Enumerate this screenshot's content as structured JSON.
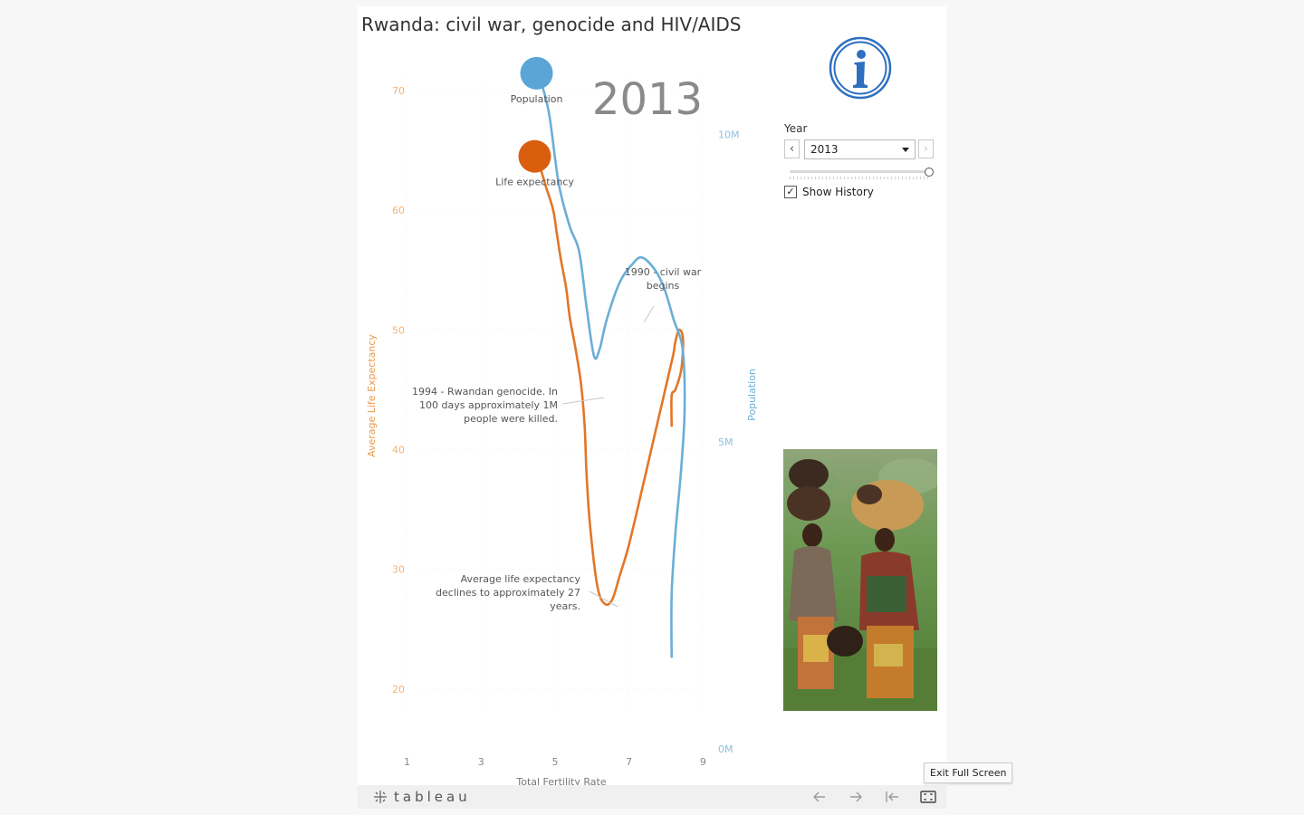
{
  "dashboard": {
    "title": "Rwanda: civil war, genocide and HIV/AIDS"
  },
  "controls": {
    "year_label": "Year",
    "year_value": "2013",
    "show_history_label": "Show History",
    "show_history_checked": true
  },
  "toolbar": {
    "brand": "tableau",
    "exit_fullscreen_tooltip": "Exit Full Screen"
  },
  "chart_data": {
    "type": "line",
    "big_year_label": "2013",
    "xlabel": "Total Fertility Rate",
    "ylabel_left": "Average Life Expectancy",
    "ylabel_right": "Population",
    "xlim": [
      0.4,
      9.7
    ],
    "ylim_left": [
      15,
      74
    ],
    "ylim_right": [
      0,
      11500000
    ],
    "x_ticks": [
      1,
      3,
      5,
      7,
      9
    ],
    "y_ticks_left": [
      20,
      30,
      40,
      50,
      60,
      70
    ],
    "y_ticks_right": [
      {
        "value": 0,
        "label": "0M"
      },
      {
        "value": 5000000,
        "label": "5M"
      },
      {
        "value": 10000000,
        "label": "10M"
      }
    ],
    "colors": {
      "life_expectancy": "#e27627",
      "population": "#6baed6",
      "life_marker": "#d95f0e",
      "pop_marker": "#5aa5d6"
    },
    "series": [
      {
        "name": "Life expectancy",
        "axis": "left",
        "points": [
          [
            8.15,
            42
          ],
          [
            8.15,
            44.5
          ],
          [
            8.25,
            45
          ],
          [
            8.4,
            46.5
          ],
          [
            8.45,
            48
          ],
          [
            8.45,
            49.5
          ],
          [
            8.35,
            50
          ],
          [
            8.25,
            49
          ],
          [
            8.2,
            48
          ],
          [
            8.05,
            46
          ],
          [
            7.9,
            44
          ],
          [
            7.75,
            42
          ],
          [
            7.6,
            40
          ],
          [
            7.45,
            38
          ],
          [
            7.3,
            36
          ],
          [
            7.15,
            34
          ],
          [
            6.95,
            31.5
          ],
          [
            6.75,
            29.5
          ],
          [
            6.55,
            27.5
          ],
          [
            6.35,
            27.1
          ],
          [
            6.15,
            28.5
          ],
          [
            5.95,
            33.5
          ],
          [
            5.85,
            38
          ],
          [
            5.8,
            42
          ],
          [
            5.7,
            45.5
          ],
          [
            5.55,
            48.5
          ],
          [
            5.4,
            51
          ],
          [
            5.3,
            53.5
          ],
          [
            5.15,
            56
          ],
          [
            5.05,
            58
          ],
          [
            4.95,
            60
          ],
          [
            4.75,
            62
          ],
          [
            4.6,
            63.5
          ],
          [
            4.45,
            64.5
          ]
        ]
      },
      {
        "name": "Population",
        "axis": "right",
        "points": [
          [
            8.15,
            1500000
          ],
          [
            8.15,
            2500000
          ],
          [
            8.25,
            3500000
          ],
          [
            8.4,
            4500000
          ],
          [
            8.5,
            5500000
          ],
          [
            8.45,
            6500000
          ],
          [
            8.2,
            7000000
          ],
          [
            7.95,
            7500000
          ],
          [
            7.7,
            7800000
          ],
          [
            7.35,
            8000000
          ],
          [
            7.1,
            7900000
          ],
          [
            6.75,
            7600000
          ],
          [
            6.4,
            7000000
          ],
          [
            6.2,
            6500000
          ],
          [
            6.05,
            6400000
          ],
          [
            5.85,
            7200000
          ],
          [
            5.65,
            8100000
          ],
          [
            5.4,
            8500000
          ],
          [
            5.1,
            9200000
          ],
          [
            4.85,
            10300000
          ],
          [
            4.65,
            10800000
          ],
          [
            4.5,
            11000000
          ]
        ]
      }
    ],
    "annotations": [
      {
        "lines": [
          "1990 - civil war",
          "begins"
        ],
        "anchor": "center"
      },
      {
        "lines": [
          "1994 - Rwandan genocide. In",
          "100 days approximately 1M",
          "people were killed."
        ],
        "anchor": "end"
      },
      {
        "lines": [
          "Average life expectancy",
          "declines to approximately 27",
          "years."
        ],
        "anchor": "end"
      }
    ],
    "marker_labels": [
      "Population",
      "Life expectancy"
    ]
  }
}
